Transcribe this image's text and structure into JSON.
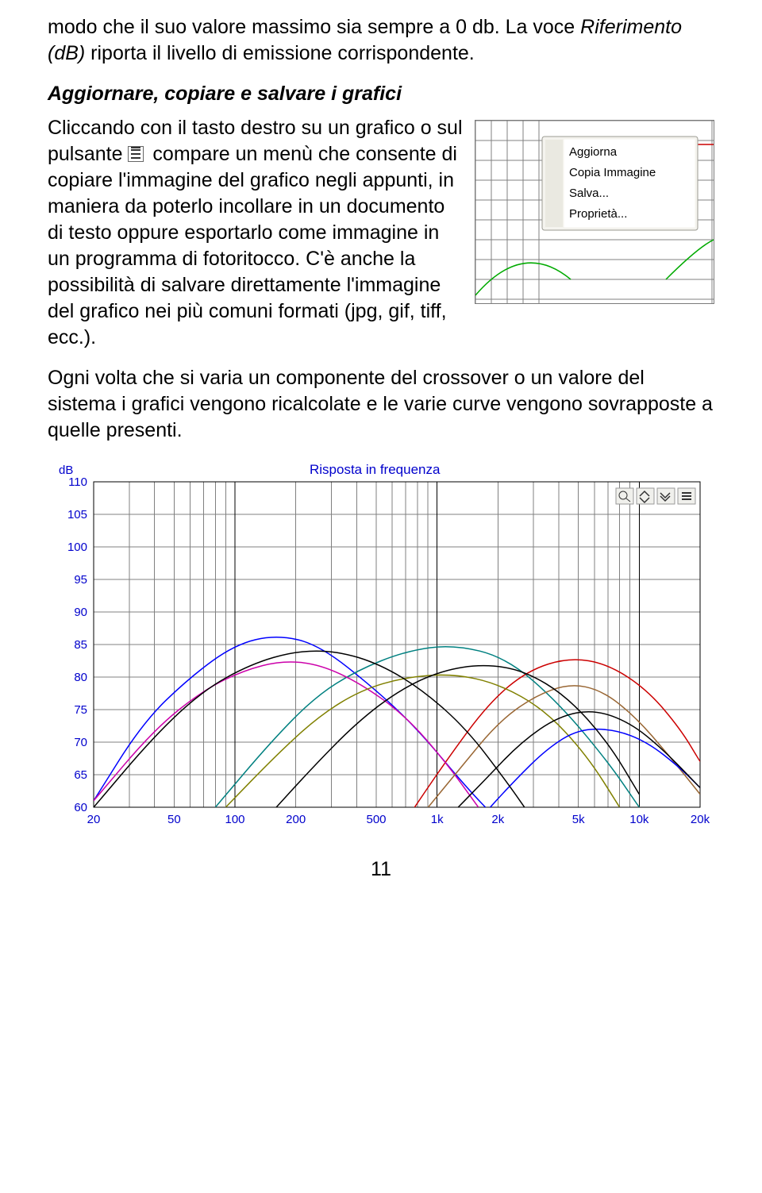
{
  "intro": {
    "line1": "modo che il suo valore massimo sia sempre a 0 db. La voce ",
    "italic": "Riferimento (dB)",
    "line2": " riporta il livello di emissione corrispondente."
  },
  "heading": "Aggiornare, copiare e salvare i grafici",
  "body": {
    "p1a": "Cliccando con il tasto destro su un grafico o sul pulsante ",
    "p1b": " compare un menù che consente di copiare l'immagine del grafico negli appunti, in maniera da poterlo incollare in un documento di testo oppure esportarlo come immagine in un programma di fotoritocco. C'è anche la possibilità di salvare direttamente l'immagine del grafico nei più comuni formati (jpg, gif, tiff, ecc.).",
    "p2": "Ogni volta che si varia un componente del crossover o un valore del sistema i grafici vengono ricalcolate e le varie curve vengono sovrapposte a quelle presenti."
  },
  "context_menu": {
    "items": [
      "Aggiorna",
      "Copia Immagine",
      "Salva...",
      "Proprietà..."
    ]
  },
  "chart": {
    "title": "Risposta in frequenza",
    "ylabel": "dB",
    "yticks": [
      60,
      65,
      70,
      75,
      80,
      85,
      90,
      95,
      100,
      105,
      110
    ],
    "xticks": [
      "20",
      "50",
      "100",
      "200",
      "500",
      "1k",
      "2k",
      "5k",
      "10k",
      "20k"
    ],
    "plot_bg": "#ffffff",
    "curves": [
      {
        "name": "blue",
        "color": "#0000ff",
        "pts": [
          [
            20,
            61
          ],
          [
            35,
            73
          ],
          [
            60,
            80
          ],
          [
            100,
            85
          ],
          [
            160,
            86.5
          ],
          [
            260,
            85
          ],
          [
            500,
            78
          ],
          [
            800,
            72
          ],
          [
            1400,
            63
          ],
          [
            2000,
            58
          ]
        ]
      },
      {
        "name": "teal",
        "color": "#008080",
        "pts": [
          [
            80,
            60
          ],
          [
            150,
            70
          ],
          [
            250,
            77
          ],
          [
            400,
            81
          ],
          [
            700,
            84
          ],
          [
            1200,
            85
          ],
          [
            2200,
            83
          ],
          [
            4000,
            76
          ],
          [
            7000,
            67
          ],
          [
            10000,
            60
          ]
        ]
      },
      {
        "name": "red",
        "color": "#cc0000",
        "pts": [
          [
            700,
            58
          ],
          [
            1100,
            67
          ],
          [
            1800,
            76
          ],
          [
            2800,
            81
          ],
          [
            4500,
            83
          ],
          [
            7000,
            82
          ],
          [
            11000,
            78
          ],
          [
            16000,
            72
          ],
          [
            20000,
            67
          ]
        ]
      },
      {
        "name": "magenta",
        "color": "#cc00aa",
        "pts": [
          [
            20,
            61
          ],
          [
            40,
            72
          ],
          [
            70,
            78
          ],
          [
            110,
            81
          ],
          [
            170,
            82.5
          ],
          [
            260,
            82
          ],
          [
            420,
            79
          ],
          [
            700,
            74
          ],
          [
            1100,
            67
          ],
          [
            1600,
            60
          ]
        ]
      },
      {
        "name": "olive",
        "color": "#808000",
        "pts": [
          [
            90,
            60
          ],
          [
            160,
            68
          ],
          [
            260,
            74
          ],
          [
            420,
            78
          ],
          [
            700,
            80
          ],
          [
            1200,
            80.5
          ],
          [
            2000,
            79
          ],
          [
            3400,
            75
          ],
          [
            5500,
            68
          ],
          [
            8000,
            60
          ]
        ]
      },
      {
        "name": "brown",
        "color": "#996633",
        "pts": [
          [
            800,
            58
          ],
          [
            1300,
            66
          ],
          [
            2000,
            73
          ],
          [
            3000,
            77
          ],
          [
            4500,
            79
          ],
          [
            6500,
            78
          ],
          [
            9500,
            74
          ],
          [
            14000,
            68
          ],
          [
            20000,
            62
          ]
        ]
      },
      {
        "name": "blue2",
        "color": "#0000ff",
        "pts": [
          [
            1600,
            58
          ],
          [
            2400,
            64
          ],
          [
            3500,
            69
          ],
          [
            5000,
            72
          ],
          [
            7500,
            72
          ],
          [
            11000,
            70
          ],
          [
            16000,
            66
          ],
          [
            20000,
            63
          ]
        ]
      },
      {
        "name": "black1",
        "color": "#000000",
        "pts": [
          [
            20,
            60
          ],
          [
            40,
            71
          ],
          [
            70,
            78
          ],
          [
            120,
            82
          ],
          [
            200,
            84
          ],
          [
            320,
            84
          ],
          [
            520,
            82
          ],
          [
            850,
            78
          ],
          [
            1400,
            72
          ],
          [
            2200,
            64
          ],
          [
            3000,
            58
          ]
        ]
      },
      {
        "name": "black2",
        "color": "#000000",
        "pts": [
          [
            140,
            58
          ],
          [
            240,
            66
          ],
          [
            400,
            73
          ],
          [
            650,
            78
          ],
          [
            1050,
            81
          ],
          [
            1700,
            82
          ],
          [
            2700,
            81
          ],
          [
            4400,
            77
          ],
          [
            7000,
            70
          ],
          [
            10000,
            62
          ]
        ]
      },
      {
        "name": "black3",
        "color": "#000000",
        "pts": [
          [
            1100,
            58
          ],
          [
            1700,
            64
          ],
          [
            2600,
            70
          ],
          [
            4000,
            74
          ],
          [
            6000,
            75
          ],
          [
            9000,
            73
          ],
          [
            13000,
            69
          ],
          [
            20000,
            63
          ]
        ]
      }
    ]
  },
  "page_number": "11"
}
